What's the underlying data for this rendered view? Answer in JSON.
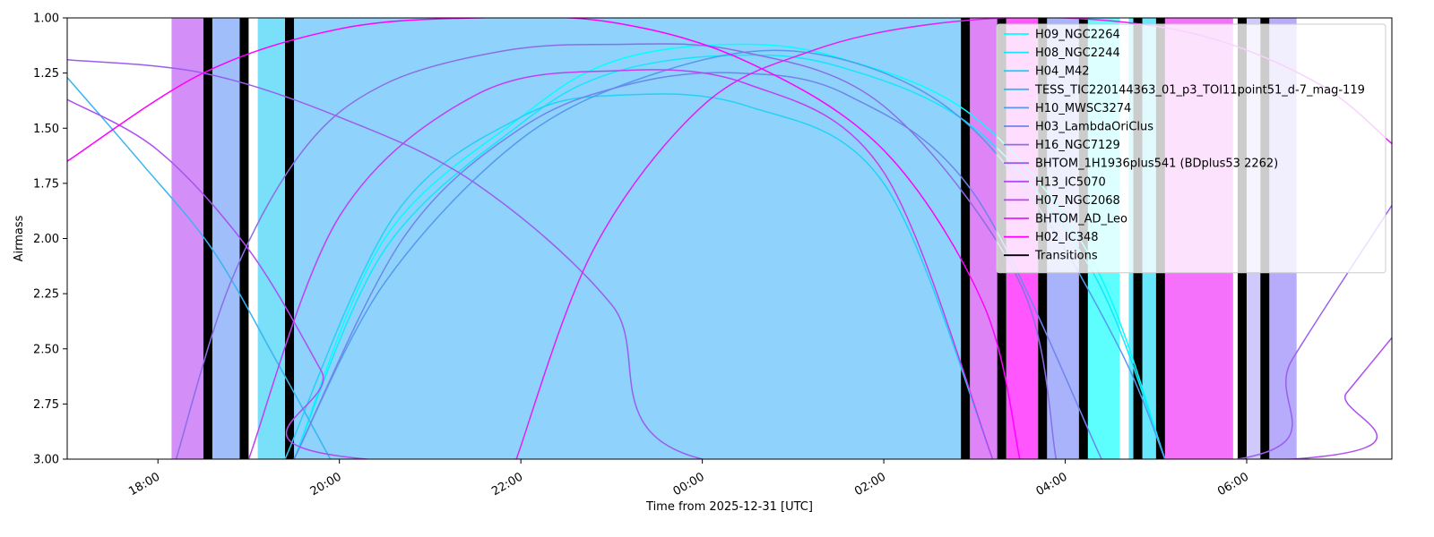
{
  "chart_data": {
    "type": "line",
    "title": "",
    "xlabel": "Time from 2025-12-31 [UTC]",
    "ylabel": "Airmass",
    "xlim": [
      -7.0,
      7.6
    ],
    "ylim": [
      3.0,
      1.0
    ],
    "y_inverted": true,
    "x_unit": "hours from 2025-12-31 00:00 UTC",
    "x_ticks": [
      {
        "value": -6,
        "label": "18:00"
      },
      {
        "value": -4,
        "label": "20:00"
      },
      {
        "value": -2,
        "label": "22:00"
      },
      {
        "value": 0,
        "label": "00:00"
      },
      {
        "value": 2,
        "label": "02:00"
      },
      {
        "value": 4,
        "label": "04:00"
      },
      {
        "value": 6,
        "label": "06:00"
      }
    ],
    "y_ticks": [
      {
        "value": 1.0,
        "label": "1.00"
      },
      {
        "value": 1.25,
        "label": "1.25"
      },
      {
        "value": 1.5,
        "label": "1.50"
      },
      {
        "value": 1.75,
        "label": "1.75"
      },
      {
        "value": 2.0,
        "label": "2.00"
      },
      {
        "value": 2.25,
        "label": "2.25"
      },
      {
        "value": 2.5,
        "label": "2.50"
      },
      {
        "value": 2.75,
        "label": "2.75"
      },
      {
        "value": 3.0,
        "label": "3.00"
      }
    ],
    "grid": false,
    "legend_position": "top-right",
    "series": [
      {
        "name": "H09_NGC2264",
        "color": "#00ffff",
        "x": [
          -4.5,
          -3.5,
          -2,
          -1,
          0.3,
          1.5,
          3,
          4.3,
          5.1
        ],
        "y": [
          3.0,
          2.0,
          1.45,
          1.2,
          1.12,
          1.18,
          1.45,
          2.1,
          3.0
        ]
      },
      {
        "name": "H08_NGC2244",
        "color": "#13e6fb",
        "x": [
          -4.5,
          -3.5,
          -2,
          -1,
          0.3,
          1.5,
          3,
          4.3,
          5.1
        ],
        "y": [
          3.0,
          2.05,
          1.48,
          1.25,
          1.17,
          1.22,
          1.5,
          2.15,
          3.0
        ]
      },
      {
        "name": "H04_M42",
        "color": "#22d2f6",
        "x": [
          -4.6,
          -3.4,
          -2,
          -0.9,
          0.5,
          2.0,
          3.2
        ],
        "y": [
          3.0,
          1.9,
          1.45,
          1.35,
          1.4,
          1.75,
          3.0
        ]
      },
      {
        "name": "TESS_TIC220144363_01_p3_TOI11point51_d-7_mag-119",
        "color": "#38b4f2",
        "x": [
          -7.0,
          -6.2,
          -5.4,
          -4.7,
          -4.1
        ],
        "y": [
          1.27,
          1.65,
          2.05,
          2.55,
          3.0
        ]
      },
      {
        "name": "H10_MWSC3274",
        "color": "#5599ee",
        "x": [
          -4.5,
          -3.5,
          -2,
          -0.5,
          1,
          2.5,
          3.6,
          4.6,
          5.1
        ],
        "y": [
          3.0,
          2.2,
          1.55,
          1.25,
          1.15,
          1.35,
          1.8,
          2.5,
          3.0
        ]
      },
      {
        "name": "H03_LambdaOriClus",
        "color": "#6e85ea",
        "x": [
          -4.5,
          -3.3,
          -2,
          -0.8,
          0.4,
          1.6,
          3.0,
          4.4
        ],
        "y": [
          3.0,
          2.0,
          1.5,
          1.3,
          1.25,
          1.35,
          1.8,
          3.0
        ]
      },
      {
        "name": "H16_NGC7129",
        "color": "#8a6ee6",
        "x": [
          -5.8,
          -5.2,
          -4.4,
          -3.5,
          -2.2,
          -1,
          0.4,
          2,
          3.5,
          3.9
        ],
        "y": [
          3.0,
          2.2,
          1.6,
          1.3,
          1.15,
          1.12,
          1.15,
          1.4,
          2.2,
          3.0
        ]
      },
      {
        "name": "BHTOM_1H1936plus541 (BDplus53 2262)",
        "color": "#9a5eef",
        "x": [
          -7.0,
          -5.5,
          -4,
          -2.5,
          -1,
          0.0,
          5.9,
          6.5,
          7.6
        ],
        "y": [
          1.19,
          1.25,
          1.45,
          1.75,
          2.3,
          3.0,
          3.0,
          2.55,
          1.85
        ]
      },
      {
        "name": "H13_IC5070",
        "color": "#ae4ef1",
        "x": [
          -7.0,
          -6,
          -5,
          -4.2,
          -3.7,
          6.5,
          7.1,
          7.6
        ],
        "y": [
          1.37,
          1.6,
          2.05,
          2.6,
          3.0,
          3.0,
          2.7,
          2.45
        ]
      },
      {
        "name": "H07_NGC2068",
        "color": "#c23ef3",
        "x": [
          -5.0,
          -4,
          -2.5,
          -1,
          0.5,
          2,
          3.2
        ],
        "y": [
          3.0,
          1.9,
          1.35,
          1.24,
          1.3,
          1.7,
          3.0
        ]
      },
      {
        "name": "BHTOM_AD_Leo",
        "color": "#e11ff8",
        "x": [
          -2.05,
          -1.2,
          0,
          1.2,
          2.5,
          4,
          5.5,
          6.8,
          7.6
        ],
        "y": [
          3.0,
          2.05,
          1.4,
          1.15,
          1.03,
          1.0,
          1.08,
          1.3,
          1.57
        ]
      },
      {
        "name": "H02_IC348",
        "color": "#ff00ff",
        "x": [
          -7.0,
          -5.5,
          -4,
          -2.5,
          -1,
          0.5,
          2,
          3.1,
          3.5
        ],
        "y": [
          1.65,
          1.25,
          1.05,
          1.0,
          1.02,
          1.2,
          1.6,
          2.3,
          3.0
        ]
      }
    ],
    "transitions_label": "Transitions",
    "transitions_color": "#000000",
    "transitions": [
      -5.45,
      -5.05,
      -4.55,
      2.9,
      3.3,
      3.75,
      4.2,
      4.8,
      5.05,
      5.95,
      6.2
    ],
    "schedule_blocks": [
      {
        "start": -5.85,
        "end": -5.5,
        "color": "#d38ff7"
      },
      {
        "start": -5.45,
        "end": -5.1,
        "color": "#9fbefa"
      },
      {
        "start": -4.9,
        "end": -4.55,
        "color": "#7adff9"
      },
      {
        "start": -4.55,
        "end": 2.9,
        "color": "#8fd3fc"
      },
      {
        "start": 2.95,
        "end": 3.3,
        "color": "#de84f6"
      },
      {
        "start": 3.35,
        "end": 3.7,
        "color": "#ff57fd"
      },
      {
        "start": 3.8,
        "end": 4.15,
        "color": "#a9b3fb"
      },
      {
        "start": 4.25,
        "end": 4.6,
        "color": "#5cfefe"
      },
      {
        "start": 4.7,
        "end": 5.0,
        "color": "#66e7fb"
      },
      {
        "start": 5.1,
        "end": 5.85,
        "color": "#f570fb"
      },
      {
        "start": 5.95,
        "end": 6.15,
        "color": "#d0cafc"
      },
      {
        "start": 6.25,
        "end": 6.55,
        "color": "#b7abfb"
      }
    ]
  }
}
